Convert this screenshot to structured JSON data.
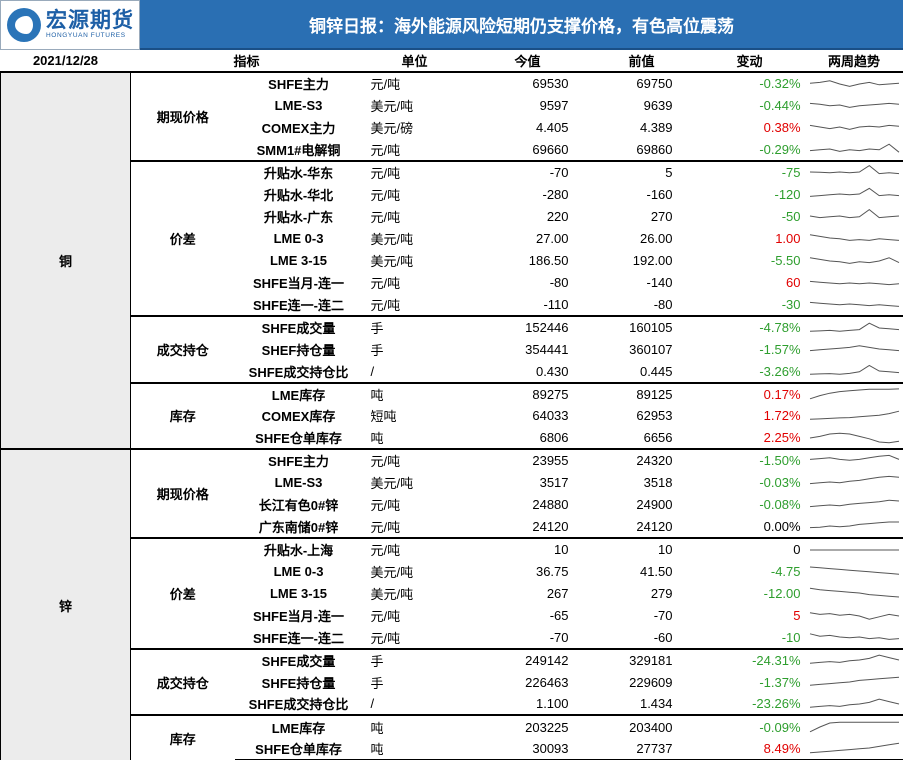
{
  "logo": {
    "cn": "宏源期货",
    "en": "HONGYUAN FUTURES"
  },
  "title": "铜锌日报：海外能源风险短期仍支撑价格，有色高位震荡",
  "table": {
    "date": "2021/12/28",
    "headers": {
      "indicator": "指标",
      "unit": "单位",
      "current": "今值",
      "previous": "前值",
      "change": "变动",
      "trend": "两周趋势"
    }
  },
  "colors": {
    "up": "#e10000",
    "down": "#2e9e2e",
    "title_bg": "#2a6fb3",
    "metal_bg": "#ececec"
  },
  "metals": [
    {
      "name": "铜",
      "groups": [
        {
          "name": "期现价格",
          "rows": [
            {
              "name": "SHFE主力",
              "unit": "元/吨",
              "current": "69530",
              "previous": "69750",
              "change": "-0.32%",
              "dir": "neg",
              "trend": [
                0.55,
                0.6,
                0.7,
                0.5,
                0.35,
                0.5,
                0.6,
                0.45,
                0.5,
                0.55
              ]
            },
            {
              "name": "LME-S3",
              "unit": "美元/吨",
              "current": "9597",
              "previous": "9639",
              "change": "-0.44%",
              "dir": "neg",
              "trend": [
                0.6,
                0.55,
                0.45,
                0.5,
                0.35,
                0.45,
                0.5,
                0.55,
                0.6,
                0.55
              ]
            },
            {
              "name": "COMEX主力",
              "unit": "美元/磅",
              "current": "4.405",
              "previous": "4.389",
              "change": "0.38%",
              "dir": "pos",
              "trend": [
                0.6,
                0.5,
                0.4,
                0.5,
                0.35,
                0.5,
                0.55,
                0.5,
                0.6,
                0.55
              ]
            },
            {
              "name": "SMM1#电解铜",
              "unit": "元/吨",
              "current": "69660",
              "previous": "69860",
              "change": "-0.29%",
              "dir": "neg",
              "trend": [
                0.4,
                0.45,
                0.5,
                0.35,
                0.45,
                0.4,
                0.5,
                0.45,
                0.8,
                0.3
              ]
            }
          ]
        },
        {
          "name": "价差",
          "rows": [
            {
              "name": "升贴水-华东",
              "unit": "元/吨",
              "current": "-70",
              "previous": "5",
              "change": "-75",
              "dir": "neg",
              "trend": [
                0.5,
                0.48,
                0.45,
                0.5,
                0.45,
                0.5,
                0.9,
                0.4,
                0.45,
                0.4
              ]
            },
            {
              "name": "升贴水-华北",
              "unit": "元/吨",
              "current": "-280",
              "previous": "-160",
              "change": "-120",
              "dir": "neg",
              "trend": [
                0.35,
                0.4,
                0.45,
                0.5,
                0.45,
                0.5,
                0.85,
                0.4,
                0.45,
                0.4
              ]
            },
            {
              "name": "升贴水-广东",
              "unit": "元/吨",
              "current": "220",
              "previous": "270",
              "change": "-50",
              "dir": "neg",
              "trend": [
                0.5,
                0.4,
                0.45,
                0.5,
                0.4,
                0.45,
                0.9,
                0.4,
                0.45,
                0.5
              ]
            },
            {
              "name": "LME 0-3",
              "unit": "美元/吨",
              "current": "27.00",
              "previous": "26.00",
              "change": "1.00",
              "dir": "pos",
              "trend": [
                0.7,
                0.6,
                0.5,
                0.45,
                0.35,
                0.4,
                0.35,
                0.45,
                0.4,
                0.35
              ]
            },
            {
              "name": "LME 3-15",
              "unit": "美元/吨",
              "current": "186.50",
              "previous": "192.00",
              "change": "-5.50",
              "dir": "neg",
              "trend": [
                0.7,
                0.6,
                0.5,
                0.45,
                0.35,
                0.45,
                0.4,
                0.5,
                0.7,
                0.4
              ]
            },
            {
              "name": "SHFE当月-连一",
              "unit": "元/吨",
              "current": "-80",
              "previous": "-140",
              "change": "60",
              "dir": "pos",
              "trend": [
                0.6,
                0.55,
                0.5,
                0.45,
                0.5,
                0.45,
                0.5,
                0.45,
                0.4,
                0.45
              ]
            },
            {
              "name": "SHFE连一-连二",
              "unit": "元/吨",
              "current": "-110",
              "previous": "-80",
              "change": "-30",
              "dir": "neg",
              "trend": [
                0.6,
                0.55,
                0.5,
                0.45,
                0.5,
                0.45,
                0.4,
                0.45,
                0.4,
                0.35
              ]
            }
          ]
        },
        {
          "name": "成交持仓",
          "rows": [
            {
              "name": "SHFE成交量",
              "unit": "手",
              "current": "152446",
              "previous": "160105",
              "change": "-4.78%",
              "dir": "neg",
              "trend": [
                0.3,
                0.32,
                0.35,
                0.3,
                0.35,
                0.4,
                0.8,
                0.5,
                0.45,
                0.4
              ]
            },
            {
              "name": "SHEF持仓量",
              "unit": "手",
              "current": "354441",
              "previous": "360107",
              "change": "-1.57%",
              "dir": "neg",
              "trend": [
                0.4,
                0.45,
                0.5,
                0.55,
                0.6,
                0.7,
                0.6,
                0.5,
                0.45,
                0.4
              ]
            },
            {
              "name": "SHFE成交持仓比",
              "unit": "/",
              "current": "0.430",
              "previous": "0.445",
              "change": "-3.26%",
              "dir": "neg",
              "trend": [
                0.3,
                0.32,
                0.34,
                0.3,
                0.35,
                0.45,
                0.85,
                0.5,
                0.45,
                0.4
              ]
            }
          ]
        },
        {
          "name": "库存",
          "rows": [
            {
              "name": "LME库存",
              "unit": "吨",
              "current": "89275",
              "previous": "89125",
              "change": "0.17%",
              "dir": "pos",
              "trend": [
                0.2,
                0.4,
                0.55,
                0.65,
                0.7,
                0.75,
                0.8,
                0.8,
                0.8,
                0.82
              ]
            },
            {
              "name": "COMEX库存",
              "unit": "短吨",
              "current": "64033",
              "previous": "62953",
              "change": "1.72%",
              "dir": "pos",
              "trend": [
                0.3,
                0.32,
                0.35,
                0.38,
                0.4,
                0.45,
                0.5,
                0.55,
                0.65,
                0.8
              ]
            },
            {
              "name": "SHFE仓单库存",
              "unit": "吨",
              "current": "6806",
              "previous": "6656",
              "change": "2.25%",
              "dir": "pos",
              "trend": [
                0.5,
                0.6,
                0.75,
                0.8,
                0.75,
                0.6,
                0.45,
                0.25,
                0.2,
                0.3
              ]
            }
          ]
        }
      ]
    },
    {
      "name": "锌",
      "groups": [
        {
          "name": "期现价格",
          "rows": [
            {
              "name": "SHFE主力",
              "unit": "元/吨",
              "current": "23955",
              "previous": "24320",
              "change": "-1.50%",
              "dir": "neg",
              "trend": [
                0.6,
                0.65,
                0.7,
                0.6,
                0.55,
                0.6,
                0.7,
                0.8,
                0.85,
                0.6
              ]
            },
            {
              "name": "LME-S3",
              "unit": "美元/吨",
              "current": "3517",
              "previous": "3518",
              "change": "-0.03%",
              "dir": "neg",
              "trend": [
                0.4,
                0.45,
                0.5,
                0.45,
                0.55,
                0.6,
                0.7,
                0.8,
                0.85,
                0.8
              ]
            },
            {
              "name": "长江有色0#锌",
              "unit": "元/吨",
              "current": "24880",
              "previous": "24900",
              "change": "-0.08%",
              "dir": "neg",
              "trend": [
                0.4,
                0.45,
                0.5,
                0.45,
                0.55,
                0.6,
                0.65,
                0.7,
                0.8,
                0.75
              ]
            },
            {
              "name": "广东南储0#锌",
              "unit": "元/吨",
              "current": "24120",
              "previous": "24120",
              "change": "0.00%",
              "dir": "zero",
              "trend": [
                0.4,
                0.42,
                0.5,
                0.45,
                0.5,
                0.6,
                0.65,
                0.7,
                0.75,
                0.75
              ]
            }
          ]
        },
        {
          "name": "价差",
          "rows": [
            {
              "name": "升贴水-上海",
              "unit": "元/吨",
              "current": "10",
              "previous": "10",
              "change": "0",
              "dir": "zero",
              "trend": [
                0.5,
                0.5,
                0.5,
                0.5,
                0.5,
                0.5,
                0.5,
                0.5,
                0.5,
                0.5
              ]
            },
            {
              "name": "LME 0-3",
              "unit": "美元/吨",
              "current": "36.75",
              "previous": "41.50",
              "change": "-4.75",
              "dir": "neg",
              "trend": [
                0.75,
                0.7,
                0.65,
                0.6,
                0.55,
                0.5,
                0.45,
                0.4,
                0.35,
                0.3
              ]
            },
            {
              "name": "LME 3-15",
              "unit": "美元/吨",
              "current": "267",
              "previous": "279",
              "change": "-12.00",
              "dir": "neg",
              "trend": [
                0.8,
                0.7,
                0.65,
                0.6,
                0.55,
                0.5,
                0.4,
                0.35,
                0.3,
                0.25
              ]
            },
            {
              "name": "SHFE当月-连一",
              "unit": "元/吨",
              "current": "-65",
              "previous": "-70",
              "change": "5",
              "dir": "pos",
              "trend": [
                0.7,
                0.6,
                0.65,
                0.55,
                0.6,
                0.5,
                0.3,
                0.45,
                0.6,
                0.5
              ]
            },
            {
              "name": "SHFE连一-连二",
              "unit": "元/吨",
              "current": "-70",
              "previous": "-60",
              "change": "-10",
              "dir": "neg",
              "trend": [
                0.7,
                0.55,
                0.6,
                0.5,
                0.45,
                0.5,
                0.4,
                0.45,
                0.35,
                0.4
              ]
            }
          ]
        },
        {
          "name": "成交持仓",
          "rows": [
            {
              "name": "SHFE成交量",
              "unit": "手",
              "current": "249142",
              "previous": "329181",
              "change": "-24.31%",
              "dir": "neg",
              "trend": [
                0.3,
                0.35,
                0.4,
                0.35,
                0.45,
                0.5,
                0.6,
                0.8,
                0.65,
                0.5
              ]
            },
            {
              "name": "SHFE持仓量",
              "unit": "手",
              "current": "226463",
              "previous": "229609",
              "change": "-1.37%",
              "dir": "neg",
              "trend": [
                0.3,
                0.35,
                0.4,
                0.45,
                0.5,
                0.6,
                0.65,
                0.7,
                0.75,
                0.8
              ]
            },
            {
              "name": "SHFE成交持仓比",
              "unit": "/",
              "current": "1.100",
              "previous": "1.434",
              "change": "-23.26%",
              "dir": "neg",
              "trend": [
                0.3,
                0.35,
                0.4,
                0.35,
                0.45,
                0.5,
                0.6,
                0.8,
                0.65,
                0.5
              ]
            }
          ]
        },
        {
          "name": "库存",
          "rows": [
            {
              "name": "LME库存",
              "unit": "吨",
              "current": "203225",
              "previous": "203400",
              "change": "-0.09%",
              "dir": "neg",
              "trend": [
                0.2,
                0.5,
                0.75,
                0.8,
                0.8,
                0.8,
                0.8,
                0.8,
                0.8,
                0.8
              ]
            },
            {
              "name": "SHFE仓单库存",
              "unit": "吨",
              "current": "30093",
              "previous": "27737",
              "change": "8.49%",
              "dir": "pos",
              "trend": [
                0.2,
                0.25,
                0.3,
                0.35,
                0.4,
                0.45,
                0.5,
                0.6,
                0.7,
                0.8
              ]
            }
          ]
        }
      ]
    }
  ]
}
